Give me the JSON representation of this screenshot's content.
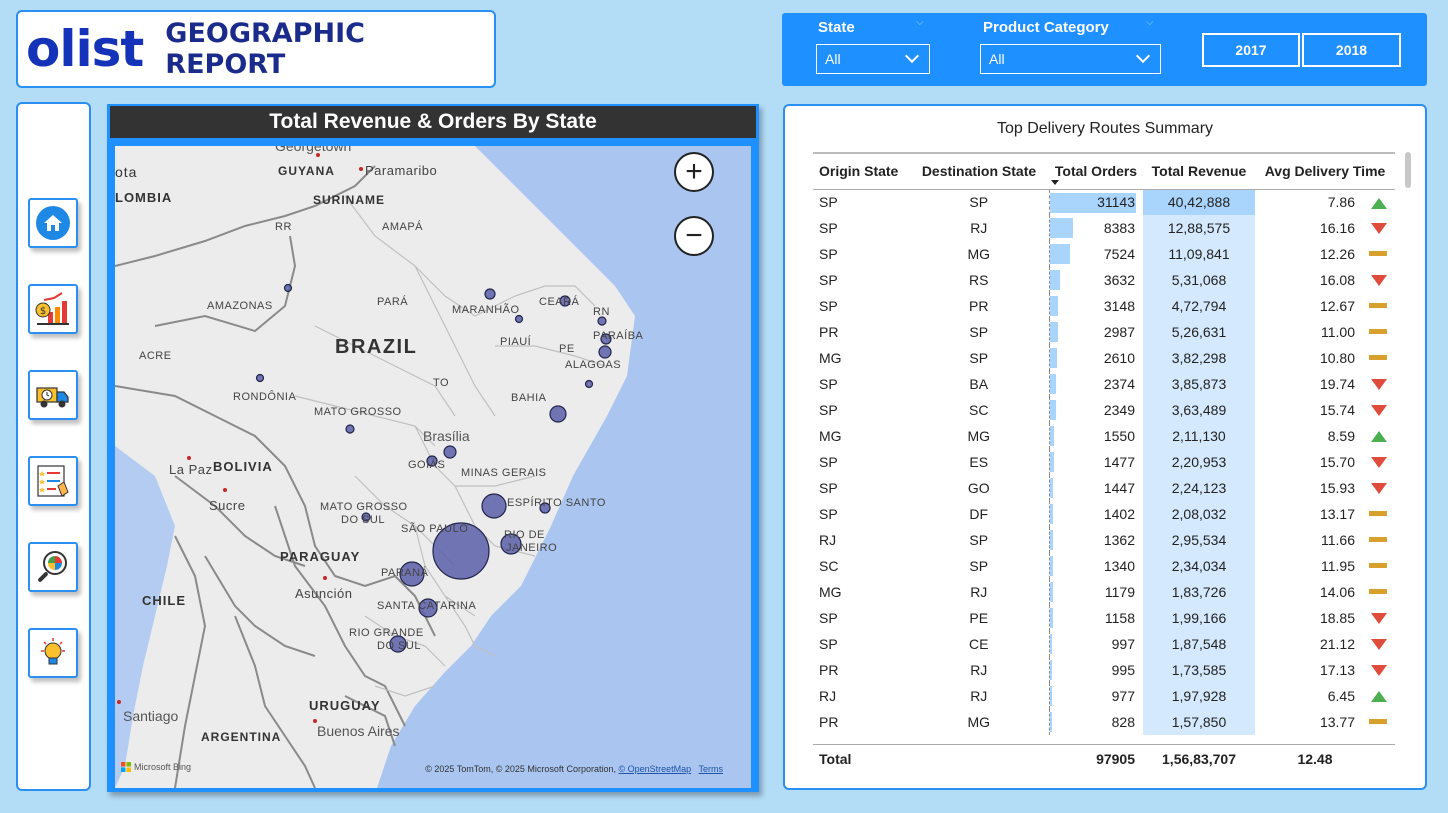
{
  "header": {
    "logo": "olist",
    "title": "GEOGRAPHIC REPORT"
  },
  "filters": {
    "state": {
      "label": "State",
      "value": "All"
    },
    "category": {
      "label": "Product Category",
      "value": "All"
    },
    "years": [
      "2017",
      "2018"
    ]
  },
  "nav": {
    "items": [
      "home-icon",
      "revenue-chart-icon",
      "delivery-truck-icon",
      "review-checklist-icon",
      "analytics-search-icon",
      "insights-bulb-icon"
    ]
  },
  "map": {
    "title": "Total Revenue & Orders By State",
    "zoom_in": "+",
    "zoom_out": "−",
    "labels": {
      "georgetown": "Georgetown",
      "paramaribo": "Paramaribo",
      "guyana": "GUYANA",
      "suriname": "SURINAME",
      "colombia": "LOMBIA",
      "bota": "ota",
      "rr": "RR",
      "amapa": "AMAPÁ",
      "amazonas": "AMAZONAS",
      "para": "PARÁ",
      "maranhao": "MARANHÃO",
      "ceara": "CEARÁ",
      "rn": "RN",
      "paraiba": "PARAÍBA",
      "pe": "PE",
      "piaui": "PIAUÍ",
      "alagoas": "ALAGOAS",
      "brazil": "BRAZIL",
      "acre": "ACRE",
      "to": "TO",
      "rondonia": "RONDÔNIA",
      "bahia": "BAHIA",
      "mato_grosso": "MATO GROSSO",
      "brasilia": "Brasília",
      "la_paz": "La Paz",
      "bolivia": "BOLIVIA",
      "goias": "GOIÁS",
      "minas": "MINAS GERAIS",
      "sucre": "Sucre",
      "espirito": "ESPÍRITO SANTO",
      "mgs1": "MATO GROSSO",
      "mgs2": "DO SUL",
      "sao_paulo": "SÃO PAULO",
      "rio1": "RIO DE",
      "rio2": "JANEIRO",
      "paraguay": "PARAGUAY",
      "parana": "PARANÁ",
      "asuncion": "Asunción",
      "chile": "CHILE",
      "santa_catarina": "SANTA CATARINA",
      "rio_grande": "RIO GRANDE",
      "do_sul": "DO SUL",
      "uruguay": "URUGUAY",
      "santiago": "Santiago",
      "argentina": "ARGENTINA",
      "buenos_aires": "Buenos Aires"
    },
    "attribution": "© 2025 TomTom, © 2025 Microsoft Corporation,",
    "osm": "© OpenStreetMap",
    "terms": "Terms",
    "bing": "Microsoft Bing"
  },
  "table": {
    "title": "Top Delivery Routes Summary",
    "columns": [
      "Origin State",
      "Destination State",
      "Total Orders",
      "Total Revenue",
      "Avg Delivery Time"
    ],
    "rows": [
      [
        "SP",
        "SP",
        "31143",
        "40,42,888",
        "7.86",
        "up"
      ],
      [
        "SP",
        "RJ",
        "8383",
        "12,88,575",
        "16.16",
        "down"
      ],
      [
        "SP",
        "MG",
        "7524",
        "11,09,841",
        "12.26",
        "flat"
      ],
      [
        "SP",
        "RS",
        "3632",
        "5,31,068",
        "16.08",
        "down"
      ],
      [
        "SP",
        "PR",
        "3148",
        "4,72,794",
        "12.67",
        "flat"
      ],
      [
        "PR",
        "SP",
        "2987",
        "5,26,631",
        "11.00",
        "flat"
      ],
      [
        "MG",
        "SP",
        "2610",
        "3,82,298",
        "10.80",
        "flat"
      ],
      [
        "SP",
        "BA",
        "2374",
        "3,85,873",
        "19.74",
        "down"
      ],
      [
        "SP",
        "SC",
        "2349",
        "3,63,489",
        "15.74",
        "down"
      ],
      [
        "MG",
        "MG",
        "1550",
        "2,11,130",
        "8.59",
        "up"
      ],
      [
        "SP",
        "ES",
        "1477",
        "2,20,953",
        "15.70",
        "down"
      ],
      [
        "SP",
        "GO",
        "1447",
        "2,24,123",
        "15.93",
        "down"
      ],
      [
        "SP",
        "DF",
        "1402",
        "2,08,032",
        "13.17",
        "flat"
      ],
      [
        "RJ",
        "SP",
        "1362",
        "2,95,534",
        "11.66",
        "flat"
      ],
      [
        "SC",
        "SP",
        "1340",
        "2,34,034",
        "11.95",
        "flat"
      ],
      [
        "MG",
        "RJ",
        "1179",
        "1,83,726",
        "14.06",
        "flat"
      ],
      [
        "SP",
        "PE",
        "1158",
        "1,99,166",
        "18.85",
        "down"
      ],
      [
        "SP",
        "CE",
        "997",
        "1,87,548",
        "21.12",
        "down"
      ],
      [
        "PR",
        "RJ",
        "995",
        "1,73,585",
        "17.13",
        "down"
      ],
      [
        "RJ",
        "RJ",
        "977",
        "1,97,928",
        "6.45",
        "up"
      ],
      [
        "PR",
        "MG",
        "828",
        "1,57,850",
        "13.77",
        "flat"
      ]
    ],
    "total": {
      "label": "Total",
      "orders": "97905",
      "revenue": "1,56,83,707",
      "time": "12.48"
    }
  },
  "colors": {
    "accent": "#1e90ff",
    "background": "#b3dcf7",
    "bubble": "#5a5fa8",
    "up": "#4caf50",
    "down": "#e04c3c",
    "flat": "#d8a12d"
  }
}
